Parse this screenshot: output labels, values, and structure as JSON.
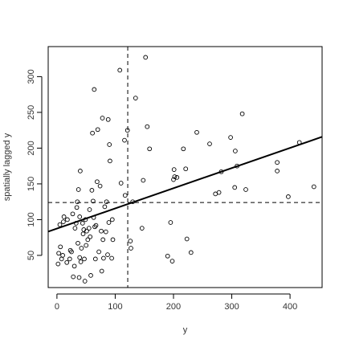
{
  "chart_data": {
    "type": "scatter",
    "title": "",
    "xlabel": "y",
    "ylabel": "spatially lagged y",
    "xlim": [
      -15,
      455
    ],
    "ylim": [
      5,
      342
    ],
    "x_ticks": [
      0,
      100,
      200,
      300,
      400
    ],
    "y_ticks": [
      50,
      100,
      150,
      200,
      250,
      300
    ],
    "grid": false,
    "legend": "none",
    "points": [
      {
        "x": 2,
        "y": 38
      },
      {
        "x": 3,
        "y": 53
      },
      {
        "x": 5,
        "y": 93
      },
      {
        "x": 6,
        "y": 62
      },
      {
        "x": 8,
        "y": 45
      },
      {
        "x": 10,
        "y": 50
      },
      {
        "x": 11,
        "y": 97
      },
      {
        "x": 12,
        "y": 104
      },
      {
        "x": 17,
        "y": 40
      },
      {
        "x": 18,
        "y": 100
      },
      {
        "x": 22,
        "y": 45
      },
      {
        "x": 23,
        "y": 57
      },
      {
        "x": 25,
        "y": 55
      },
      {
        "x": 27,
        "y": 108
      },
      {
        "x": 28,
        "y": 20
      },
      {
        "x": 30,
        "y": 35
      },
      {
        "x": 31,
        "y": 88
      },
      {
        "x": 33,
        "y": 95
      },
      {
        "x": 34,
        "y": 117
      },
      {
        "x": 35,
        "y": 125
      },
      {
        "x": 36,
        "y": 67
      },
      {
        "x": 37,
        "y": 142
      },
      {
        "x": 38,
        "y": 19
      },
      {
        "x": 39,
        "y": 104
      },
      {
        "x": 39,
        "y": 47
      },
      {
        "x": 40,
        "y": 168
      },
      {
        "x": 41,
        "y": 41
      },
      {
        "x": 42,
        "y": 60
      },
      {
        "x": 44,
        "y": 95
      },
      {
        "x": 45,
        "y": 80
      },
      {
        "x": 46,
        "y": 86
      },
      {
        "x": 47,
        "y": 45
      },
      {
        "x": 48,
        "y": 14
      },
      {
        "x": 49,
        "y": 100
      },
      {
        "x": 50,
        "y": 64
      },
      {
        "x": 51,
        "y": 84
      },
      {
        "x": 53,
        "y": 72
      },
      {
        "x": 55,
        "y": 88
      },
      {
        "x": 56,
        "y": 114
      },
      {
        "x": 57,
        "y": 76
      },
      {
        "x": 58,
        "y": 22
      },
      {
        "x": 60,
        "y": 141
      },
      {
        "x": 61,
        "y": 221
      },
      {
        "x": 62,
        "y": 126
      },
      {
        "x": 63,
        "y": 103
      },
      {
        "x": 64,
        "y": 282
      },
      {
        "x": 65,
        "y": 90
      },
      {
        "x": 66,
        "y": 45
      },
      {
        "x": 67,
        "y": 92
      },
      {
        "x": 69,
        "y": 153
      },
      {
        "x": 70,
        "y": 226
      },
      {
        "x": 72,
        "y": 55
      },
      {
        "x": 74,
        "y": 147
      },
      {
        "x": 76,
        "y": 84
      },
      {
        "x": 77,
        "y": 28
      },
      {
        "x": 78,
        "y": 242
      },
      {
        "x": 79,
        "y": 72
      },
      {
        "x": 80,
        "y": 46
      },
      {
        "x": 82,
        "y": 118
      },
      {
        "x": 84,
        "y": 83
      },
      {
        "x": 85,
        "y": 125
      },
      {
        "x": 87,
        "y": 51
      },
      {
        "x": 88,
        "y": 240
      },
      {
        "x": 89,
        "y": 96
      },
      {
        "x": 90,
        "y": 205
      },
      {
        "x": 91,
        "y": 182
      },
      {
        "x": 94,
        "y": 46
      },
      {
        "x": 95,
        "y": 100
      },
      {
        "x": 96,
        "y": 72
      },
      {
        "x": 108,
        "y": 309
      },
      {
        "x": 110,
        "y": 151
      },
      {
        "x": 116,
        "y": 211
      },
      {
        "x": 117,
        "y": 134
      },
      {
        "x": 121,
        "y": 225
      },
      {
        "x": 126,
        "y": 70
      },
      {
        "x": 127,
        "y": 60
      },
      {
        "x": 130,
        "y": 125
      },
      {
        "x": 135,
        "y": 270
      },
      {
        "x": 146,
        "y": 88
      },
      {
        "x": 148,
        "y": 155
      },
      {
        "x": 152,
        "y": 327
      },
      {
        "x": 155,
        "y": 230
      },
      {
        "x": 159,
        "y": 199
      },
      {
        "x": 190,
        "y": 49
      },
      {
        "x": 195,
        "y": 96
      },
      {
        "x": 198,
        "y": 42
      },
      {
        "x": 200,
        "y": 156
      },
      {
        "x": 201,
        "y": 170
      },
      {
        "x": 202,
        "y": 160
      },
      {
        "x": 206,
        "y": 159
      },
      {
        "x": 217,
        "y": 199
      },
      {
        "x": 221,
        "y": 171
      },
      {
        "x": 223,
        "y": 73
      },
      {
        "x": 230,
        "y": 54
      },
      {
        "x": 240,
        "y": 222
      },
      {
        "x": 262,
        "y": 206
      },
      {
        "x": 272,
        "y": 136
      },
      {
        "x": 278,
        "y": 138
      },
      {
        "x": 282,
        "y": 167
      },
      {
        "x": 298,
        "y": 215
      },
      {
        "x": 305,
        "y": 145
      },
      {
        "x": 306,
        "y": 196
      },
      {
        "x": 309,
        "y": 175
      },
      {
        "x": 318,
        "y": 248
      },
      {
        "x": 324,
        "y": 142
      },
      {
        "x": 378,
        "y": 180
      },
      {
        "x": 378,
        "y": 168
      },
      {
        "x": 397,
        "y": 132
      },
      {
        "x": 416,
        "y": 208
      },
      {
        "x": 441,
        "y": 146
      }
    ],
    "regression_line": {
      "intercept": 87.5,
      "slope": 0.282
    },
    "mean_x": 121.5,
    "mean_y": 124
  }
}
